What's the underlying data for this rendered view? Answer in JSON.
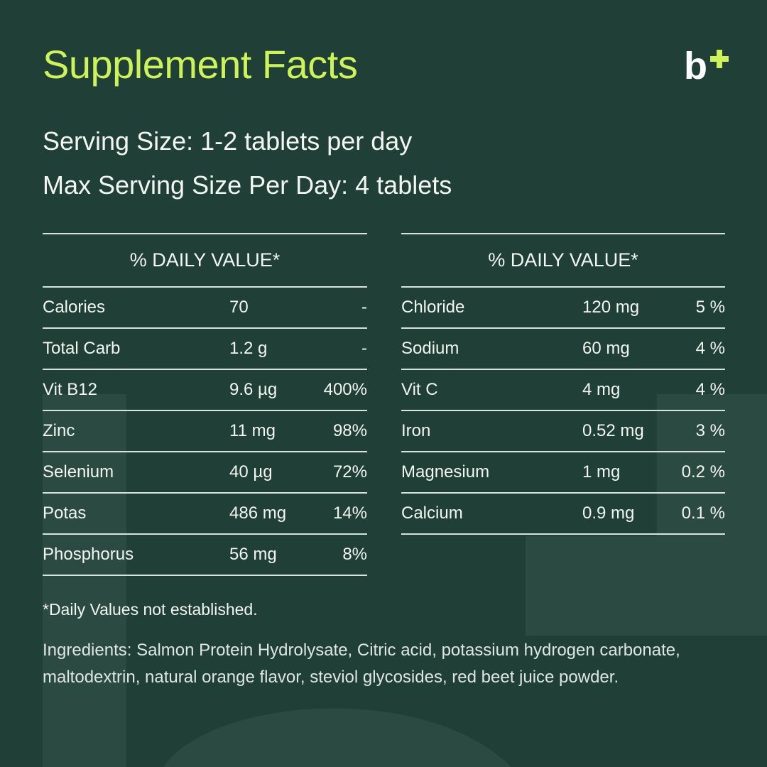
{
  "header": {
    "title": "Supplement Facts",
    "logo": "b"
  },
  "serving": [
    "Serving Size: 1-2 tablets per day",
    "Max Serving Size Per Day: 4 tablets"
  ],
  "tables": [
    {
      "heading": "% DAILY VALUE*",
      "rows": [
        [
          "Calories",
          "70",
          "-"
        ],
        [
          "Total Carb",
          "1.2 g",
          "-"
        ],
        [
          "Vit B12",
          "9.6 µg",
          "400%"
        ],
        [
          "Zinc",
          "11 mg",
          "98%"
        ],
        [
          "Selenium",
          "40 µg",
          "72%"
        ],
        [
          "Potas",
          "486 mg",
          "14%"
        ],
        [
          "Phosphorus",
          "56 mg",
          "8%"
        ]
      ]
    },
    {
      "heading": "% DAILY VALUE*",
      "rows": [
        [
          "Chloride",
          "120 mg",
          "5 %"
        ],
        [
          "Sodium",
          "60 mg",
          "4 %"
        ],
        [
          "Vit C",
          "4 mg",
          "4 %"
        ],
        [
          "Iron",
          "0.52 mg",
          "3 %"
        ],
        [
          "Magnesium",
          "1 mg",
          "0.2 %"
        ],
        [
          "Calcium",
          "0.9 mg",
          "0.1 %"
        ]
      ]
    }
  ],
  "footnote": "*Daily Values not established.",
  "ingredients": "Ingredients: Salmon Protein Hydrolysate, Citric acid, potassium hydrogen carbonate, maltodextrin, natural orange flavor, steviol glycosides, red beet juice powder."
}
